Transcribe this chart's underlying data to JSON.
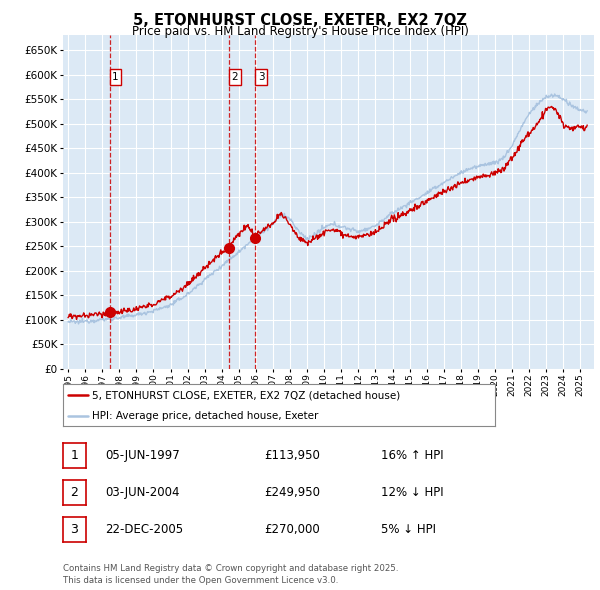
{
  "title": "5, ETONHURST CLOSE, EXETER, EX2 7QZ",
  "subtitle": "Price paid vs. HM Land Registry's House Price Index (HPI)",
  "legend_line1": "5, ETONHURST CLOSE, EXETER, EX2 7QZ (detached house)",
  "legend_line2": "HPI: Average price, detached house, Exeter",
  "footer": "Contains HM Land Registry data © Crown copyright and database right 2025.\nThis data is licensed under the Open Government Licence v3.0.",
  "transactions": [
    {
      "num": 1,
      "date": "05-JUN-1997",
      "price": 113950,
      "pct": "16%",
      "dir": "↑",
      "x_year": 1997.43
    },
    {
      "num": 2,
      "date": "03-JUN-2004",
      "price": 249950,
      "pct": "12%",
      "dir": "↓",
      "x_year": 2004.43
    },
    {
      "num": 3,
      "date": "22-DEC-2005",
      "price": 270000,
      "pct": "5%",
      "dir": "↓",
      "x_year": 2005.97
    }
  ],
  "hpi_color": "#aac4e0",
  "price_color": "#cc0000",
  "dot_color": "#cc0000",
  "dashed_color": "#cc0000",
  "bg_color": "#dce9f5",
  "grid_color": "#ffffff",
  "ylim": [
    0,
    680000
  ],
  "yticks": [
    0,
    50000,
    100000,
    150000,
    200000,
    250000,
    300000,
    350000,
    400000,
    450000,
    500000,
    550000,
    600000,
    650000
  ],
  "xlabel_years": [
    1995,
    1996,
    1997,
    1998,
    1999,
    2000,
    2001,
    2002,
    2003,
    2004,
    2005,
    2006,
    2007,
    2008,
    2009,
    2010,
    2011,
    2012,
    2013,
    2014,
    2015,
    2016,
    2017,
    2018,
    2019,
    2020,
    2021,
    2022,
    2023,
    2024,
    2025
  ],
  "xlim": [
    1994.7,
    2025.8
  ]
}
